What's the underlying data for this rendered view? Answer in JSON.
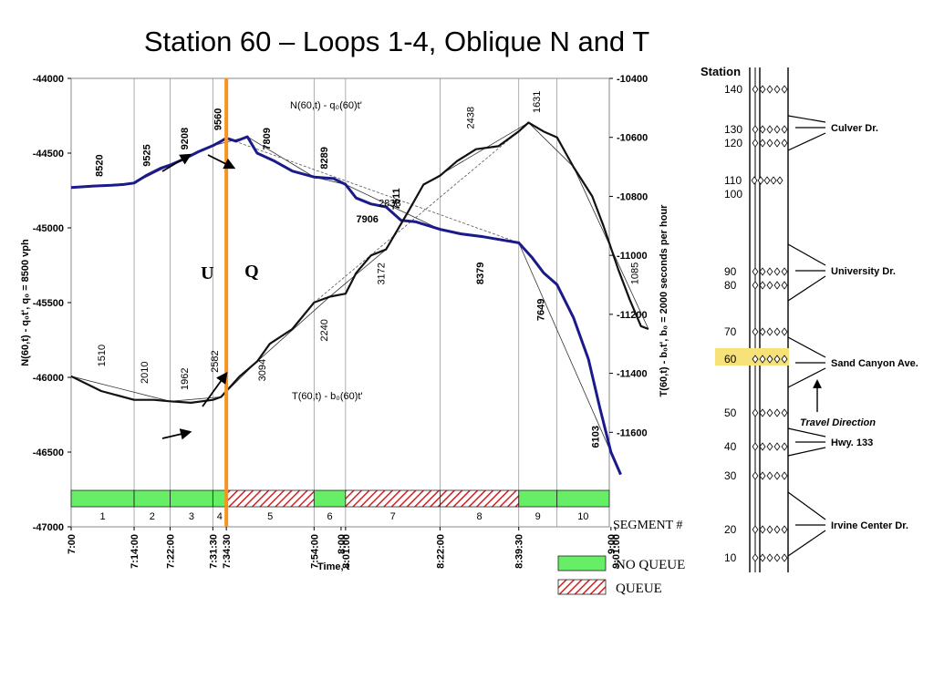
{
  "title": "Station 60 – Loops 1-4, Oblique N and T",
  "colors": {
    "n_curve": "#1a1a8a",
    "t_curve": "#111111",
    "queue_line": "#f7931e",
    "no_queue_fill": "#66ee66",
    "queue_hatch": "#d42020",
    "station_highlight": "#f7e27a"
  },
  "chart_data": {
    "type": "line",
    "left_axis": {
      "label": "N(60,t) - q₀t', q₀ = 8500 vph",
      "min": -47000,
      "max": -44000,
      "ticks": [
        "-44000",
        "-44500",
        "-45000",
        "-45500",
        "-46000",
        "-46500",
        "-47000"
      ]
    },
    "right_axis": {
      "label": "T(60,t) - b₀t', b₀ = 2000 seconds per hour",
      "min": -11700,
      "max": -10400,
      "ticks": [
        "-10400",
        "-10600",
        "-10800",
        "-11000",
        "-11200",
        "-11400",
        "-11600"
      ]
    },
    "x_axis": {
      "label": "Time, t",
      "start_seconds": 0,
      "end_seconds": 7200,
      "ticks": [
        {
          "label": "7:00",
          "t": 0
        },
        {
          "label": "7:14:00",
          "t": 840
        },
        {
          "label": "7:22:00",
          "t": 1320
        },
        {
          "label": "7:31:30",
          "t": 1890
        },
        {
          "label": "7:34:30",
          "t": 2070
        },
        {
          "label": "7:54:00",
          "t": 3240
        },
        {
          "label": "8:00",
          "t": 3600
        },
        {
          "label": "8:01:00",
          "t": 3660
        },
        {
          "label": "8:22:00",
          "t": 4920
        },
        {
          "label": "8:39:30",
          "t": 5970
        },
        {
          "label": "9:00",
          "t": 7200
        },
        {
          "label": "9:01:00",
          "t": 7260
        }
      ]
    },
    "boundary_times": [
      840,
      1320,
      1890,
      2070,
      3240,
      3660,
      4920,
      5970,
      6480
    ],
    "queue_onset_time": 2070,
    "series": [
      {
        "name": "N(60,t) - q₀(60)t'",
        "axis": "left",
        "points": [
          [
            0,
            -44730
          ],
          [
            300,
            -44720
          ],
          [
            540,
            -44715
          ],
          [
            700,
            -44710
          ],
          [
            840,
            -44700
          ],
          [
            1000,
            -44650
          ],
          [
            1200,
            -44600
          ],
          [
            1320,
            -44580
          ],
          [
            1500,
            -44540
          ],
          [
            1700,
            -44490
          ],
          [
            1890,
            -44450
          ],
          [
            2000,
            -44420
          ],
          [
            2070,
            -44400
          ],
          [
            2200,
            -44420
          ],
          [
            2350,
            -44390
          ],
          [
            2480,
            -44500
          ],
          [
            2700,
            -44550
          ],
          [
            2950,
            -44620
          ],
          [
            3240,
            -44660
          ],
          [
            3500,
            -44670
          ],
          [
            3660,
            -44710
          ],
          [
            3800,
            -44800
          ],
          [
            4000,
            -44840
          ],
          [
            4200,
            -44860
          ],
          [
            4400,
            -44950
          ],
          [
            4600,
            -44960
          ],
          [
            4920,
            -45010
          ],
          [
            5200,
            -45040
          ],
          [
            5500,
            -45060
          ],
          [
            5970,
            -45100
          ],
          [
            6150,
            -45200
          ],
          [
            6300,
            -45300
          ],
          [
            6480,
            -45380
          ],
          [
            6700,
            -45600
          ],
          [
            6900,
            -45880
          ],
          [
            7050,
            -46200
          ],
          [
            7200,
            -46500
          ],
          [
            7330,
            -46650
          ]
        ]
      },
      {
        "name": "T(60,t) - b₀(60)t'",
        "axis": "right",
        "points": [
          [
            0,
            -11410
          ],
          [
            400,
            -11460
          ],
          [
            840,
            -11490
          ],
          [
            1100,
            -11490
          ],
          [
            1320,
            -11495
          ],
          [
            1600,
            -11500
          ],
          [
            1890,
            -11490
          ],
          [
            2000,
            -11480
          ],
          [
            2070,
            -11460
          ],
          [
            2250,
            -11410
          ],
          [
            2480,
            -11360
          ],
          [
            2650,
            -11300
          ],
          [
            2950,
            -11250
          ],
          [
            3240,
            -11160
          ],
          [
            3450,
            -11140
          ],
          [
            3660,
            -11130
          ],
          [
            3800,
            -11060
          ],
          [
            4000,
            -11000
          ],
          [
            4200,
            -10980
          ],
          [
            4500,
            -10850
          ],
          [
            4700,
            -10760
          ],
          [
            4920,
            -10730
          ],
          [
            5150,
            -10680
          ],
          [
            5400,
            -10640
          ],
          [
            5700,
            -10630
          ],
          [
            5970,
            -10580
          ],
          [
            6100,
            -10550
          ],
          [
            6300,
            -10580
          ],
          [
            6480,
            -10600
          ],
          [
            6700,
            -10700
          ],
          [
            6950,
            -10800
          ],
          [
            7100,
            -10900
          ],
          [
            7300,
            -11050
          ],
          [
            7450,
            -11150
          ],
          [
            7600,
            -11240
          ],
          [
            7700,
            -11250
          ]
        ]
      }
    ],
    "slope_labels": {
      "n_curve": [
        {
          "text": "8520",
          "t": 420
        },
        {
          "text": "9525",
          "t": 1050
        },
        {
          "text": "9208",
          "t": 1560
        },
        {
          "text": "9560",
          "t": 2000
        },
        {
          "text": "7809",
          "t": 2650
        },
        {
          "text": "8289",
          "t": 3420
        },
        {
          "text": "7511",
          "t": 4380
        },
        {
          "text": "7906",
          "t": 3950
        },
        {
          "text": "8379",
          "t": 5500
        },
        {
          "text": "7649",
          "t": 6310
        },
        {
          "text": "6103",
          "t": 7040
        }
      ],
      "t_curve": [
        {
          "text": "1510",
          "t": 450
        },
        {
          "text": "2010",
          "t": 1020
        },
        {
          "text": "1962",
          "t": 1560
        },
        {
          "text": "2582",
          "t": 1960
        },
        {
          "text": "3094",
          "t": 2590
        },
        {
          "text": "2240",
          "t": 3420
        },
        {
          "text": "3172",
          "t": 4180
        },
        {
          "text": "2838",
          "t": 4250
        },
        {
          "text": "2438",
          "t": 5370
        },
        {
          "text": "1631",
          "t": 6250
        },
        {
          "text": "1085",
          "t": 7560
        }
      ]
    },
    "phase_labels": [
      "U",
      "Q"
    ],
    "segments": [
      {
        "n": "1",
        "state": "NO QUEUE"
      },
      {
        "n": "2",
        "state": "NO QUEUE"
      },
      {
        "n": "3",
        "state": "NO QUEUE"
      },
      {
        "n": "4",
        "state": "NO QUEUE"
      },
      {
        "n": "5",
        "state": "QUEUE"
      },
      {
        "n": "6",
        "state": "NO QUEUE"
      },
      {
        "n": "7",
        "state": "QUEUE"
      },
      {
        "n": "8",
        "state": "QUEUE"
      },
      {
        "n": "9",
        "state": "NO QUEUE"
      },
      {
        "n": "10",
        "state": "NO QUEUE"
      }
    ]
  },
  "segment_label": "SEGMENT #",
  "legend": {
    "no_queue": "NO QUEUE",
    "queue": "QUEUE"
  },
  "station_map": {
    "header": "Station",
    "highlighted": "60",
    "travel_direction": "Travel Direction",
    "stations": [
      {
        "num": "140",
        "detectors": 5
      },
      {
        "num": "130",
        "detectors": 5
      },
      {
        "num": "120",
        "detectors": 5
      },
      {
        "num": "110",
        "detectors": 5
      },
      {
        "num": "100",
        "detectors": 0
      },
      {
        "num": "90",
        "detectors": 5
      },
      {
        "num": "80",
        "detectors": 5
      },
      {
        "num": "70",
        "detectors": 5
      },
      {
        "num": "60",
        "detectors": 5
      },
      {
        "num": "50",
        "detectors": 5
      },
      {
        "num": "40",
        "detectors": 5
      },
      {
        "num": "30",
        "detectors": 5
      },
      {
        "num": "20",
        "detectors": 5
      },
      {
        "num": "10",
        "detectors": 5
      }
    ],
    "interchanges": [
      "Culver Dr.",
      "University Dr.",
      "Sand Canyon Ave.",
      "Hwy. 133",
      "Irvine Center Dr."
    ]
  }
}
